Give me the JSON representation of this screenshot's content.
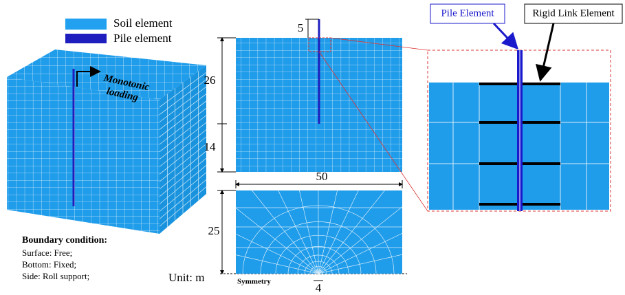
{
  "legend": {
    "soil": "Soil element",
    "pile": "Pile element"
  },
  "loading": {
    "line1": "Monotonic",
    "line2": "loading"
  },
  "boundary": {
    "title": "Boundary condition:",
    "surface": "Surface: Free;",
    "bottom": "Bottom: Fixed;",
    "side": "Side: Roll support;"
  },
  "unit": "Unit: m",
  "dimensions": {
    "pile_above": 5,
    "upper_depth": 26,
    "lower_depth": 14,
    "width": 50,
    "half_width": 25,
    "pile_spacing": 4
  },
  "symmetry": "Symmetry",
  "detail": {
    "pile_label": "Pile Element",
    "link_label": "Rigid Link Element"
  }
}
